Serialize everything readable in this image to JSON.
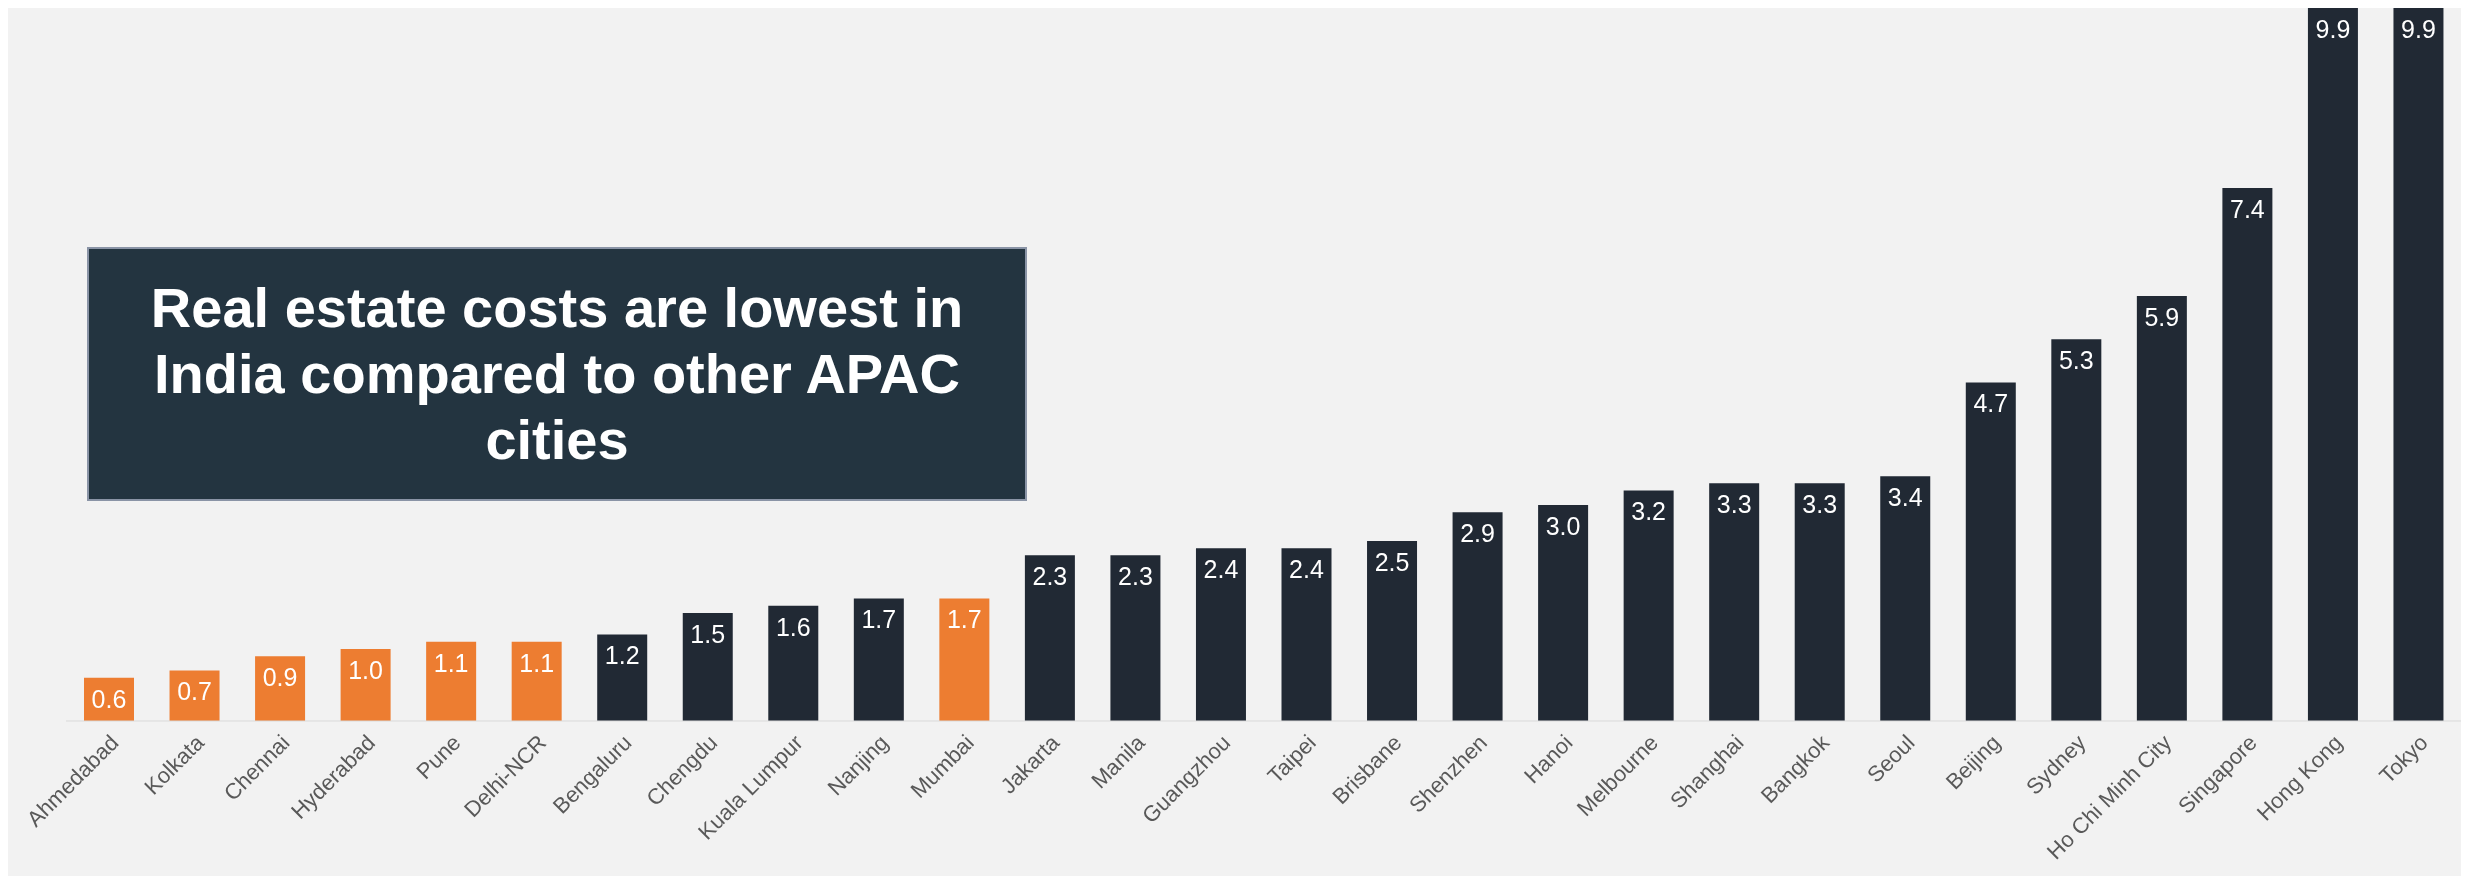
{
  "chart_data": {
    "type": "bar",
    "title": "Real estate costs are lowest in India compared to other APAC cities",
    "categories": [
      "Ahmedabad",
      "Kolkata",
      "Chennai",
      "Hyderabad",
      "Pune",
      "Delhi-NCR",
      "Bengaluru",
      "Chengdu",
      "Kuala Lumpur",
      "Nanjing",
      "Mumbai",
      "Jakarta",
      "Manila",
      "Guangzhou",
      "Taipei",
      "Brisbane",
      "Shenzhen",
      "Hanoi",
      "Melbourne",
      "Shanghai",
      "Bangkok",
      "Seoul",
      "Beijing",
      "Sydney",
      "Ho Chi Minh City",
      "Singapore",
      "Hong Kong",
      "Tokyo"
    ],
    "values": [
      0.6,
      0.7,
      0.9,
      1.0,
      1.1,
      1.1,
      1.2,
      1.5,
      1.6,
      1.7,
      1.7,
      2.3,
      2.3,
      2.4,
      2.4,
      2.5,
      2.9,
      3.0,
      3.2,
      3.3,
      3.3,
      3.4,
      4.7,
      5.3,
      5.9,
      7.4,
      9.9,
      9.9
    ],
    "colors": [
      "#ed7d31",
      "#ed7d31",
      "#ed7d31",
      "#ed7d31",
      "#ed7d31",
      "#ed7d31",
      "#212934",
      "#212934",
      "#212934",
      "#212934",
      "#ed7d31",
      "#212934",
      "#212934",
      "#212934",
      "#212934",
      "#212934",
      "#212934",
      "#212934",
      "#212934",
      "#212934",
      "#212934",
      "#212934",
      "#212934",
      "#212934",
      "#212934",
      "#212934",
      "#212934",
      "#212934"
    ],
    "value_labels": [
      "0.6",
      "0.7",
      "0.9",
      "1.0",
      "1.1",
      "1.1",
      "1.2",
      "1.5",
      "1.6",
      "1.7",
      "1.7",
      "2.3",
      "2.3",
      "2.4",
      "2.4",
      "2.5",
      "2.9",
      "3.0",
      "3.2",
      "3.3",
      "3.3",
      "3.4",
      "4.7",
      "5.3",
      "5.9",
      "7.4",
      "9.9",
      "9.9"
    ]
  }
}
